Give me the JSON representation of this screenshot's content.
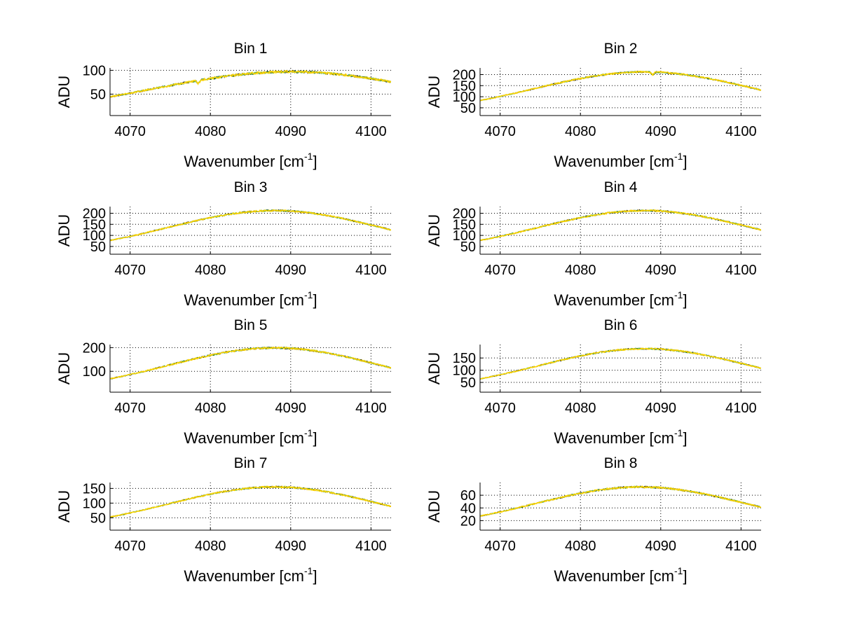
{
  "figure": {
    "background": "#ffffff",
    "series_colors": [
      "#000000",
      "#1f7a1f",
      "#5fbf5f",
      "#e6b800",
      "#ffd700"
    ]
  },
  "chart_data": [
    {
      "type": "line",
      "title": "Bin 1",
      "xlabel": "Wavenumber [cm",
      "xlabel_sup": "-1",
      "xlabel_close": "]",
      "ylabel": "ADU",
      "xlim": [
        4067.5,
        4102.5
      ],
      "ylim": [
        5,
        105
      ],
      "xticks": [
        4070,
        4080,
        4090,
        4100
      ],
      "yticks": [
        50,
        100
      ],
      "profile": {
        "peak_x": 4090,
        "peak_y": 97,
        "half_width": 26,
        "base_y": 6,
        "noise": 2.5,
        "dip_x": 4078.5,
        "dip_depth": 7
      },
      "grid": true
    },
    {
      "type": "line",
      "title": "Bin 2",
      "xlabel": "Wavenumber [cm",
      "xlabel_sup": "-1",
      "xlabel_close": "]",
      "ylabel": "ADU",
      "xlim": [
        4067.5,
        4102.5
      ],
      "ylim": [
        15,
        230
      ],
      "xticks": [
        4070,
        4080,
        4090,
        4100
      ],
      "yticks": [
        50,
        100,
        150,
        200
      ],
      "profile": {
        "peak_x": 4088,
        "peak_y": 212,
        "half_width": 21,
        "base_y": 18,
        "noise": 4,
        "dip_x": 4089,
        "dip_depth": 14
      },
      "grid": true
    },
    {
      "type": "line",
      "title": "Bin 3",
      "xlabel": "Wavenumber [cm",
      "xlabel_sup": "-1",
      "xlabel_close": "]",
      "ylabel": "ADU",
      "xlim": [
        4067.5,
        4102.5
      ],
      "ylim": [
        15,
        230
      ],
      "xticks": [
        4070,
        4080,
        4090,
        4100
      ],
      "yticks": [
        50,
        100,
        150,
        200
      ],
      "profile": {
        "peak_x": 4088,
        "peak_y": 212,
        "half_width": 20,
        "base_y": 20,
        "noise": 4,
        "dip_x": 0,
        "dip_depth": 0
      },
      "grid": true
    },
    {
      "type": "line",
      "title": "Bin 4",
      "xlabel": "Wavenumber [cm",
      "xlabel_sup": "-1",
      "xlabel_close": "]",
      "ylabel": "ADU",
      "xlim": [
        4067.5,
        4102.5
      ],
      "ylim": [
        15,
        230
      ],
      "xticks": [
        4070,
        4080,
        4090,
        4100
      ],
      "yticks": [
        50,
        100,
        150,
        200
      ],
      "profile": {
        "peak_x": 4088,
        "peak_y": 212,
        "half_width": 20,
        "base_y": 20,
        "noise": 4,
        "dip_x": 0,
        "dip_depth": 0
      },
      "grid": true
    },
    {
      "type": "line",
      "title": "Bin 5",
      "xlabel": "Wavenumber [cm",
      "xlabel_sup": "-1",
      "xlabel_close": "]",
      "ylabel": "ADU",
      "xlim": [
        4067.5,
        4102.5
      ],
      "ylim": [
        12,
        213
      ],
      "xticks": [
        4070,
        4080,
        4090,
        4100
      ],
      "yticks": [
        100,
        200
      ],
      "profile": {
        "peak_x": 4088,
        "peak_y": 199,
        "half_width": 20,
        "base_y": 13,
        "noise": 4,
        "dip_x": 0,
        "dip_depth": 0
      },
      "grid": true
    },
    {
      "type": "line",
      "title": "Bin 6",
      "xlabel": "Wavenumber [cm",
      "xlabel_sup": "-1",
      "xlabel_close": "]",
      "ylabel": "ADU",
      "xlim": [
        4067.5,
        4102.5
      ],
      "ylim": [
        10,
        205
      ],
      "xticks": [
        4070,
        4080,
        4090,
        4100
      ],
      "yticks": [
        50,
        100,
        150
      ],
      "profile": {
        "peak_x": 4088,
        "peak_y": 188,
        "half_width": 20,
        "base_y": 12,
        "noise": 3.5,
        "dip_x": 0,
        "dip_depth": 0
      },
      "grid": true
    },
    {
      "type": "line",
      "title": "Bin 7",
      "xlabel": "Wavenumber [cm",
      "xlabel_sup": "-1",
      "xlabel_close": "]",
      "ylabel": "ADU",
      "xlim": [
        4067.5,
        4102.5
      ],
      "ylim": [
        8,
        170
      ],
      "xticks": [
        4070,
        4080,
        4090,
        4100
      ],
      "yticks": [
        50,
        100,
        150
      ],
      "profile": {
        "peak_x": 4088,
        "peak_y": 155,
        "half_width": 20,
        "base_y": 9,
        "noise": 3,
        "dip_x": 0,
        "dip_depth": 0
      },
      "grid": true
    },
    {
      "type": "line",
      "title": "Bin 8",
      "xlabel": "Wavenumber [cm",
      "xlabel_sup": "-1",
      "xlabel_close": "]",
      "ylabel": "ADU",
      "xlim": [
        4067.5,
        4102.5
      ],
      "ylim": [
        5,
        80
      ],
      "xticks": [
        4070,
        4080,
        4090,
        4100
      ],
      "yticks": [
        20,
        40,
        60
      ],
      "profile": {
        "peak_x": 4087.5,
        "peak_y": 73,
        "half_width": 20,
        "base_y": 6,
        "noise": 1.5,
        "dip_x": 0,
        "dip_depth": 0
      },
      "grid": true
    }
  ]
}
